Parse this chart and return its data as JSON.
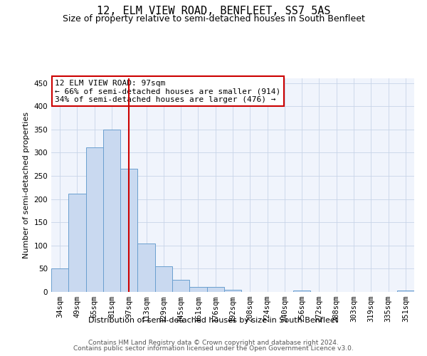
{
  "title": "12, ELM VIEW ROAD, BENFLEET, SS7 5AS",
  "subtitle": "Size of property relative to semi-detached houses in South Benfleet",
  "xlabel": "Distribution of semi-detached houses by size in South Benfleet",
  "ylabel": "Number of semi-detached properties",
  "categories": [
    "34sqm",
    "49sqm",
    "65sqm",
    "81sqm",
    "97sqm",
    "113sqm",
    "129sqm",
    "145sqm",
    "161sqm",
    "176sqm",
    "192sqm",
    "208sqm",
    "224sqm",
    "240sqm",
    "256sqm",
    "272sqm",
    "288sqm",
    "303sqm",
    "319sqm",
    "335sqm",
    "351sqm"
  ],
  "values": [
    50,
    211,
    312,
    350,
    265,
    104,
    55,
    26,
    11,
    10,
    5,
    0,
    0,
    0,
    3,
    0,
    0,
    0,
    0,
    0,
    3
  ],
  "bar_color": "#c9d9f0",
  "bar_edge_color": "#6a9fcf",
  "highlight_line_index": 4,
  "highlight_color": "#cc0000",
  "annotation_line1": "12 ELM VIEW ROAD: 97sqm",
  "annotation_line2": "← 66% of semi-detached houses are smaller (914)",
  "annotation_line3": "34% of semi-detached houses are larger (476) →",
  "annotation_box_color": "#ffffff",
  "annotation_box_edge": "#cc0000",
  "ylim": [
    0,
    460
  ],
  "yticks": [
    0,
    50,
    100,
    150,
    200,
    250,
    300,
    350,
    400,
    450
  ],
  "footer1": "Contains HM Land Registry data © Crown copyright and database right 2024.",
  "footer2": "Contains public sector information licensed under the Open Government Licence v3.0.",
  "title_fontsize": 11,
  "subtitle_fontsize": 9,
  "axis_label_fontsize": 8,
  "tick_fontsize": 7.5,
  "annotation_fontsize": 8,
  "footer_fontsize": 6.5,
  "grid_color": "#c8d4e8"
}
